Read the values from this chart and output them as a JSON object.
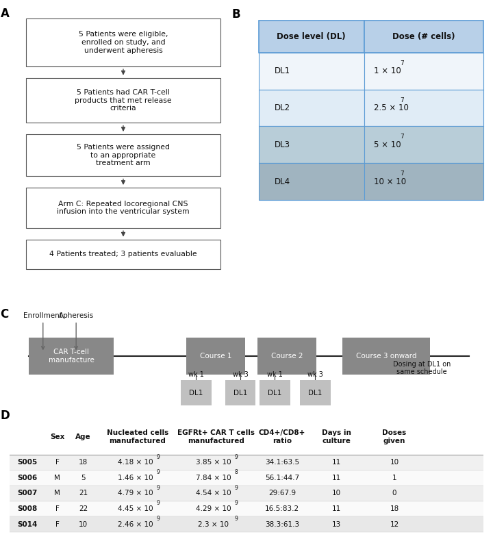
{
  "fig_width": 7.2,
  "fig_height": 7.9,
  "dpi": 100,
  "panel_A_label": "A",
  "panel_B_label": "B",
  "panel_C_label": "C",
  "panel_D_label": "D",
  "flowchart_boxes": [
    "5 Patients were eligible,\nenrolled on study, and\nunderwent apheresis",
    "5 Patients had CAR T-cell\nproducts that met release\ncriteria",
    "5 Patients were assigned\nto an appropriate\ntreatment arm",
    "Arm C: Repeated locoregional CNS\ninfusion into the ventricular system",
    "4 Patients treated; 3 patients evaluable"
  ],
  "dose_table_header": [
    "Dose level (DL)",
    "Dose (# cells)"
  ],
  "dose_table_rows": [
    [
      "DL1",
      "1 × 10",
      "7"
    ],
    [
      "DL2",
      "2.5 × 10",
      "7"
    ],
    [
      "DL3",
      "5 × 10",
      "7"
    ],
    [
      "DL4",
      "10 × 10",
      "7"
    ]
  ],
  "dose_row_colors": [
    "#f0f5fa",
    "#e0ecf6",
    "#b8cdd8",
    "#a0b4c0"
  ],
  "dose_header_color": "#b8d0e8",
  "dose_border_color": "#5b9bd5",
  "timeline_wk_labels": [
    "wk 1",
    "wk 3",
    "wk 1",
    "wk 3"
  ],
  "timeline_note": "Dosing at DL1 on\nsame schedule",
  "enrollment_label": "Enrollment",
  "apheresis_label": "Apheresis",
  "demo_headers": [
    "",
    "Sex",
    "Age",
    "Nucleated cells\nmanufactured",
    "EGFRt+ CAR T cells\nmanufactured",
    "CD4+/CD8+\nratio",
    "Days in\nculture",
    "Doses\ngiven"
  ],
  "demo_rows": [
    [
      "S005",
      "F",
      "18",
      "4.18 × 10",
      "9",
      "3.85 × 10",
      "9",
      "34.1:63.5",
      "11",
      "10"
    ],
    [
      "S006",
      "M",
      "5",
      "1.46 × 10",
      "9",
      "7.84 × 10",
      "8",
      "56.1:44.7",
      "11",
      "1"
    ],
    [
      "S007",
      "M",
      "21",
      "4.79 × 10",
      "9",
      "4.54 × 10",
      "9",
      "29:67.9",
      "10",
      "0"
    ],
    [
      "S008",
      "F",
      "22",
      "4.45 × 10",
      "9",
      "4.29 × 10",
      "9",
      "16.5:83.2",
      "11",
      "18"
    ],
    [
      "S014",
      "F",
      "10",
      "2.46 × 10",
      "9",
      "2.3 × 10",
      "9",
      "38.3:61.3",
      "13",
      "12"
    ]
  ],
  "demo_row_colors": [
    "#f0f0f0",
    "#fafafa",
    "#eeeeee",
    "#fafafa",
    "#e8e8e8"
  ],
  "box_edge_color": "#555555",
  "arrow_color": "#444444",
  "text_color": "#111111",
  "bg_color": "#ffffff"
}
